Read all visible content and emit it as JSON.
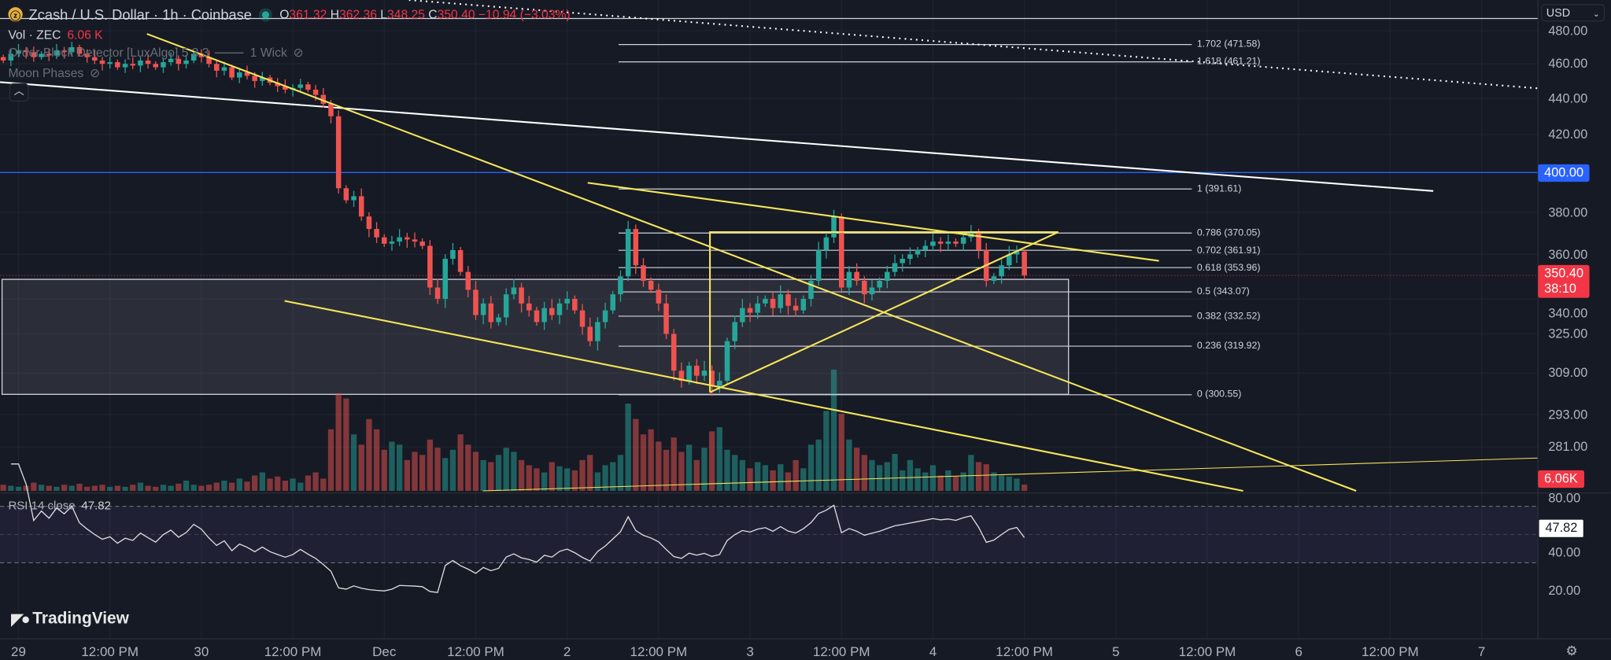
{
  "header": {
    "title": "Zcash / U.S. Dollar · 1h · Coinbase",
    "o_label": "O",
    "o": "361.32",
    "h_label": "H",
    "h": "362.36",
    "l_label": "L",
    "l": "348.25",
    "c_label": "C",
    "c": "350.40",
    "change": "−10.94 (−3.03%)",
    "vol_label": "Vol · ZEC",
    "vol": "6.06 K",
    "indicator1": "Order Block Detector [LuxAlgo] 5 3 3",
    "indicator1_wick": "1 Wick",
    "indicator2": "Moon Phases",
    "rsi_label": "RSI 14 close",
    "rsi_value": "47.82"
  },
  "currency": "USD",
  "logo": "TradingView",
  "tags": {
    "alert_price": "400.00",
    "last_price": "350.40",
    "countdown": "38:10",
    "volume": "6.06K",
    "rsi": "47.82"
  },
  "colors": {
    "up": "#26a69a",
    "down": "#ef5350",
    "drawing": "#f7e55a",
    "alert": "#2962ff",
    "rsi": "#e0e0e0"
  },
  "chart_data": {
    "type": "candlestick",
    "symbol": "ZEC/USD",
    "interval": "1h",
    "first_hour_offset": -2,
    "closes": [
      462,
      466,
      468,
      467,
      464,
      466,
      465,
      468,
      467,
      470,
      466,
      464,
      462,
      460,
      461,
      458,
      460,
      459,
      462,
      460,
      458,
      461,
      463,
      460,
      462,
      466,
      464,
      460,
      456,
      458,
      452,
      455,
      453,
      450,
      452,
      449,
      447,
      445,
      446,
      448,
      445,
      442,
      437,
      430,
      392,
      386,
      388,
      378,
      372,
      368,
      365,
      366,
      368,
      367,
      366,
      364,
      345,
      340,
      358,
      362,
      352,
      344,
      333,
      338,
      330,
      332,
      342,
      345,
      338,
      335,
      330,
      336,
      333,
      338,
      340,
      335,
      328,
      322,
      330,
      335,
      342,
      350,
      372,
      355,
      348,
      344,
      338,
      325,
      310,
      306,
      312,
      308,
      310,
      304,
      306,
      322,
      330,
      336,
      334,
      338,
      340,
      336,
      342,
      337,
      335,
      340,
      348,
      362,
      368,
      378,
      345,
      352,
      348,
      342,
      345,
      348,
      352,
      356,
      358,
      360,
      362,
      364,
      366,
      365,
      366,
      365,
      368,
      370,
      362,
      348,
      350,
      355,
      360,
      362,
      350.4
    ],
    "volumes_k": [
      6,
      5,
      4,
      5,
      8,
      6,
      5,
      4,
      6,
      5,
      7,
      4,
      5,
      6,
      4,
      5,
      4,
      6,
      8,
      5,
      4,
      6,
      5,
      7,
      10,
      6,
      5,
      6,
      8,
      10,
      8,
      12,
      9,
      15,
      18,
      12,
      14,
      10,
      12,
      8,
      15,
      18,
      12,
      60,
      95,
      90,
      55,
      45,
      70,
      60,
      40,
      48,
      45,
      30,
      38,
      35,
      50,
      42,
      32,
      40,
      55,
      45,
      38,
      30,
      28,
      35,
      42,
      38,
      30,
      25,
      22,
      18,
      28,
      24,
      22,
      20,
      30,
      35,
      18,
      25,
      28,
      35,
      85,
      70,
      55,
      60,
      48,
      40,
      52,
      38,
      45,
      30,
      42,
      58,
      62,
      40,
      35,
      30,
      22,
      28,
      25,
      20,
      26,
      18,
      30,
      22,
      45,
      50,
      78,
      118,
      75,
      50,
      42,
      35,
      30,
      25,
      28,
      36,
      20,
      30,
      22,
      18,
      25,
      15,
      20,
      14,
      18,
      35,
      28,
      26,
      18,
      15,
      14,
      12,
      6.06
    ],
    "last_candle": {
      "open": 361.32,
      "high": 362.36,
      "low": 348.25,
      "close": 350.4
    },
    "price_axis": {
      "scale": "log",
      "ticks": [
        "480.00",
        "460.00",
        "440.00",
        "420.00",
        "400.00",
        "380.00",
        "360.00",
        "340.00",
        "325.00",
        "309.00",
        "293.00",
        "281.00"
      ]
    },
    "rsi_axis": {
      "ticks": [
        "80.00",
        "40.00",
        "20.00"
      ],
      "bands": [
        70,
        30
      ]
    },
    "x_ticks": [
      "29",
      "12:00 PM",
      "30",
      "12:00 PM",
      "Dec",
      "12:00 PM",
      "2",
      "12:00 PM",
      "3",
      "12:00 PM",
      "4",
      "12:00 PM",
      "5",
      "12:00 PM",
      "6",
      "12:00 PM",
      "7"
    ],
    "fib_levels": [
      {
        "label": "1.702 (471.58)",
        "price": 471.58
      },
      {
        "label": "1.618 (461.21)",
        "price": 461.21
      },
      {
        "label": "1 (391.61)",
        "price": 391.61
      },
      {
        "label": "0.786 (370.05)",
        "price": 370.05
      },
      {
        "label": "0.702 (361.91)",
        "price": 361.91
      },
      {
        "label": "0.618 (353.96)",
        "price": 353.96
      },
      {
        "label": "0.5 (343.07)",
        "price": 343.07
      },
      {
        "label": "0.382 (332.52)",
        "price": 332.52
      },
      {
        "label": "0.236 (319.92)",
        "price": 319.92
      },
      {
        "label": "0 (300.55)",
        "price": 300.55
      }
    ],
    "alert_level": 400,
    "rsi_last": 47.82
  }
}
